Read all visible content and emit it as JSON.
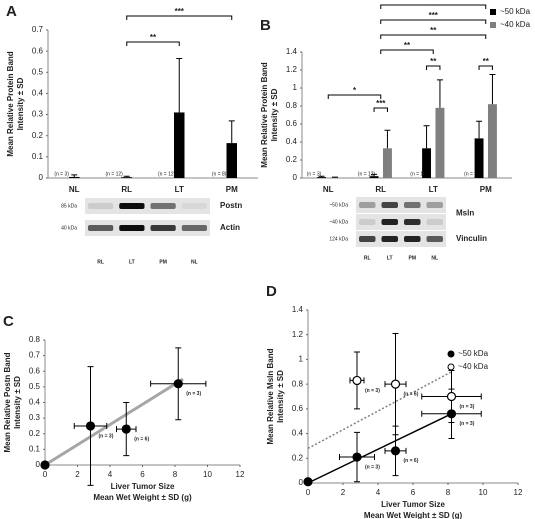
{
  "chart_data": [
    {
      "type": "bar",
      "label": "A",
      "ylabel": [
        "Mean Relative Protein Band",
        "Intensity ± SD"
      ],
      "categories": [
        "NL",
        "RL",
        "LT",
        "PM"
      ],
      "values": [
        0.005,
        0.004,
        0.31,
        0.165
      ],
      "errors": [
        0.01,
        0.004,
        0.255,
        0.105
      ],
      "color": "#000000",
      "sample_sizes": [
        "(n = 3)",
        "(n = 12)",
        "(n = 12)",
        "(n = 8)"
      ],
      "ylim": [
        0,
        0.7
      ],
      "yticks": [
        0,
        0.1,
        0.2,
        0.3,
        0.4,
        0.5,
        0.6,
        0.7
      ],
      "significance": [
        {
          "from": "RL",
          "to": "LT",
          "label": "**"
        },
        {
          "from": "RL",
          "to": "PM",
          "label": "***"
        }
      ],
      "blot": {
        "markers": [
          "85 kDa",
          "40 kDa"
        ],
        "proteins": [
          "Postn",
          "Actin"
        ],
        "lanes": [
          "RL",
          "LT",
          "PM",
          "NL"
        ]
      }
    },
    {
      "type": "bar",
      "label": "B",
      "ylabel": [
        "Mean Relative Protein Band",
        "Intensity ± SD"
      ],
      "categories": [
        "NL",
        "RL",
        "LT",
        "PM"
      ],
      "series": [
        {
          "name": "~50 kDa",
          "color": "#000000",
          "values": [
            0.01,
            0.02,
            0.33,
            0.44
          ],
          "errors": [
            0.01,
            0.02,
            0.25,
            0.19
          ]
        },
        {
          "name": "~40 kDa",
          "color": "#7f7f7f",
          "values": [
            0.005,
            0.33,
            0.78,
            0.82
          ],
          "errors": [
            0.005,
            0.2,
            0.31,
            0.33
          ]
        }
      ],
      "legend": "top-right",
      "sample_sizes": [
        "(n = 3)",
        "(n = 12)",
        "(n = 12)",
        "(n = 8)"
      ],
      "ylim": [
        0,
        1.4
      ],
      "yticks": [
        0,
        0.2,
        0.4,
        0.6,
        0.8,
        1,
        1.2,
        1.4
      ],
      "significance": [
        {
          "from": "RL",
          "to": "RL",
          "label": "***"
        },
        {
          "from": "NL",
          "to": "RL",
          "label": "*"
        },
        {
          "from": "LT",
          "to": "LT",
          "label": "**"
        },
        {
          "from": "PM",
          "to": "PM",
          "label": "**"
        },
        {
          "from": "RL",
          "to": "LT",
          "label": "**"
        },
        {
          "from": "RL",
          "to": "PM",
          "label": "**"
        },
        {
          "from": "RL",
          "to": "PM",
          "label": "***"
        },
        {
          "from": "RL",
          "to": "PM",
          "label": "**"
        }
      ],
      "blot": {
        "markers": [
          "~50 kDa",
          "~40 kDa",
          "124 kDa"
        ],
        "proteins": [
          "Msln",
          "Vinculin"
        ],
        "lanes": [
          "RL",
          "LT",
          "PM",
          "NL"
        ]
      }
    },
    {
      "type": "scatter",
      "label": "C",
      "ylabel": [
        "Mean Relative Postn Band",
        "Intensity ± SD"
      ],
      "xlabel": [
        "Liver Tumor Size",
        "Mean Wet Weight ± SD (g)"
      ],
      "x": [
        0,
        2.8,
        5,
        8.2
      ],
      "values": [
        0,
        0.25,
        0.23,
        0.52
      ],
      "x_errors": [
        0,
        1,
        0.6,
        1.7
      ],
      "errors": [
        0,
        0.38,
        0.17,
        0.23
      ],
      "point_labels": [
        null,
        "(n = 3)",
        "(n = 6)",
        "(n = 3)"
      ],
      "color": "#000000",
      "marker": "filled",
      "trendline": {
        "color": "#a6a6a6",
        "style": "solid",
        "x": [
          0,
          8.5
        ],
        "y": [
          0,
          0.55
        ]
      },
      "xlim": [
        0,
        12
      ],
      "xticks": [
        0,
        2,
        4,
        6,
        8,
        10,
        12
      ],
      "ylim": [
        0,
        0.8
      ],
      "yticks": [
        0,
        0.1,
        0.2,
        0.3,
        0.4,
        0.5,
        0.6,
        0.7,
        0.8
      ]
    },
    {
      "type": "scatter",
      "label": "D",
      "ylabel": [
        "Mean Relative Msln Band",
        "Intensity ± SD"
      ],
      "xlabel": [
        "Liver Tumor Size",
        "Mean Wet Weight ± SD (g)"
      ],
      "series": [
        {
          "name": "~50 kDa",
          "color": "#000000",
          "marker": "filled",
          "x": [
            0,
            2.8,
            5,
            8.2
          ],
          "values": [
            0.01,
            0.21,
            0.26,
            0.56
          ],
          "x_errors": [
            0,
            1,
            0.6,
            1.7
          ],
          "errors": [
            0,
            0.2,
            0.2,
            0.2
          ],
          "point_labels": [
            null,
            "(n = 3)",
            "(n = 6)",
            "(n = 3)"
          ],
          "trendline": {
            "color": "#000000",
            "style": "solid",
            "x": [
              0,
              8.2
            ],
            "y": [
              0,
              0.56
            ]
          }
        },
        {
          "name": "~40 kDa",
          "color": "#000000",
          "marker": "open",
          "x": [
            2.8,
            5,
            8.2
          ],
          "values": [
            0.83,
            0.8,
            0.7
          ],
          "x_errors": [
            0.4,
            0.6,
            1.7
          ],
          "errors": [
            0.23,
            0.41,
            0.21
          ],
          "point_labels": [
            "(n = 3)",
            "(n = 6)",
            "(n = 3)"
          ],
          "trendline": {
            "color": "#7f7f7f",
            "style": "dotted",
            "x": [
              0,
              8.2
            ],
            "y": [
              0.28,
              0.9
            ]
          }
        }
      ],
      "legend": "top-right",
      "xlim": [
        0,
        12
      ],
      "xticks": [
        0,
        2,
        4,
        6,
        8,
        10,
        12
      ],
      "ylim": [
        0,
        1.4
      ],
      "yticks": [
        0,
        0.2,
        0.4,
        0.6,
        0.8,
        1,
        1.2,
        1.4
      ]
    }
  ]
}
